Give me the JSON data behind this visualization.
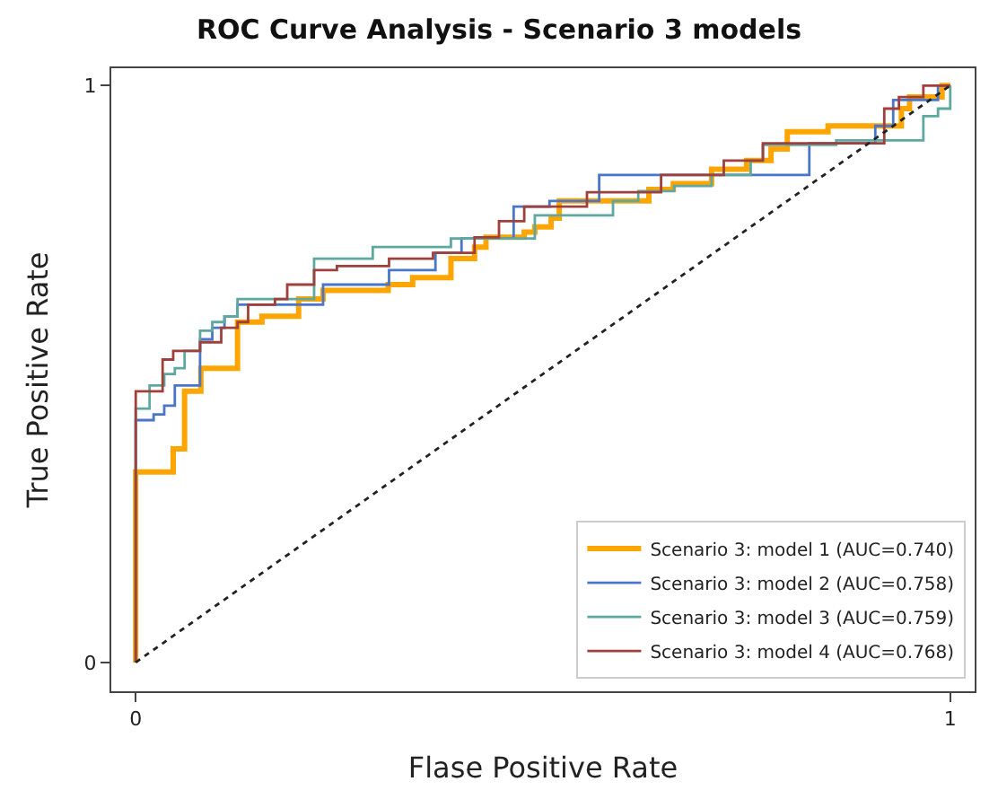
{
  "chart_data": {
    "type": "step",
    "title": "ROC Curve Analysis - Scenario 3 models",
    "xlabel": "Flase Positive Rate",
    "ylabel": "True Positive Rate",
    "xlim": [
      -0.03,
      1.03
    ],
    "ylim": [
      -0.05,
      1.03
    ],
    "xticks": [
      0,
      1
    ],
    "yticks": [
      0,
      1
    ],
    "legend": "bottom right",
    "marker": "none",
    "series": [
      {
        "name": "Scenario 3: model 1 (AUC=0.740)",
        "color": "#ffa500",
        "x": [
          0,
          0,
          0.046,
          0.06,
          0.08,
          0.125,
          0.155,
          0.2,
          0.23,
          0.31,
          0.34,
          0.387,
          0.416,
          0.43,
          0.477,
          0.49,
          0.51,
          0.52,
          0.63,
          0.66,
          0.707,
          0.75,
          0.78,
          0.8,
          0.85,
          0.94,
          0.95,
          0.99,
          1
        ],
        "values": [
          0,
          0.33,
          0.37,
          0.47,
          0.51,
          0.59,
          0.6,
          0.63,
          0.645,
          0.655,
          0.667,
          0.7,
          0.72,
          0.737,
          0.746,
          0.755,
          0.77,
          0.8,
          0.82,
          0.83,
          0.855,
          0.87,
          0.89,
          0.92,
          0.93,
          0.96,
          0.98,
          1,
          1
        ]
      },
      {
        "name": "Scenario 3: model 2 (AUC=0.758)",
        "color": "#4a76c9",
        "x": [
          0,
          0,
          0.022,
          0.035,
          0.048,
          0.079,
          0.094,
          0.109,
          0.125,
          0.23,
          0.311,
          0.368,
          0.4,
          0.464,
          0.508,
          0.569,
          0.827,
          0.908,
          0.93,
          0.985,
          1
        ],
        "values": [
          0,
          0.42,
          0.43,
          0.445,
          0.48,
          0.56,
          0.58,
          0.6,
          0.62,
          0.655,
          0.68,
          0.71,
          0.735,
          0.79,
          0.8,
          0.845,
          0.9,
          0.93,
          0.975,
          1,
          1
        ]
      },
      {
        "name": "Scenario 3: model 3 (AUC=0.759)",
        "color": "#5fa8a0",
        "x": [
          0,
          0,
          0.017,
          0.035,
          0.048,
          0.06,
          0.079,
          0.094,
          0.109,
          0.125,
          0.219,
          0.291,
          0.387,
          0.49,
          0.586,
          0.617,
          0.661,
          0.707,
          0.755,
          0.77,
          0.86,
          0.967,
          0.985,
          1
        ],
        "values": [
          0,
          0.44,
          0.48,
          0.5,
          0.51,
          0.54,
          0.575,
          0.59,
          0.6,
          0.63,
          0.7,
          0.72,
          0.735,
          0.775,
          0.8,
          0.817,
          0.826,
          0.845,
          0.87,
          0.897,
          0.905,
          0.947,
          0.96,
          1
        ]
      },
      {
        "name": "Scenario 3: model 4 (AUC=0.768)",
        "color": "#a0403c",
        "x": [
          0,
          0,
          0.033,
          0.046,
          0.079,
          0.105,
          0.125,
          0.138,
          0.171,
          0.186,
          0.219,
          0.247,
          0.311,
          0.365,
          0.416,
          0.446,
          0.477,
          0.554,
          0.645,
          0.722,
          0.77,
          0.919,
          0.937,
          0.967,
          1
        ],
        "values": [
          0,
          0.47,
          0.525,
          0.54,
          0.555,
          0.58,
          0.59,
          0.62,
          0.63,
          0.655,
          0.68,
          0.687,
          0.7,
          0.71,
          0.737,
          0.765,
          0.79,
          0.815,
          0.845,
          0.87,
          0.9,
          0.96,
          0.98,
          1,
          1
        ]
      },
      {
        "type": "line",
        "color": "#222222",
        "line_style": "dotted",
        "x": [
          0,
          1
        ],
        "values": [
          0,
          1
        ]
      }
    ]
  }
}
